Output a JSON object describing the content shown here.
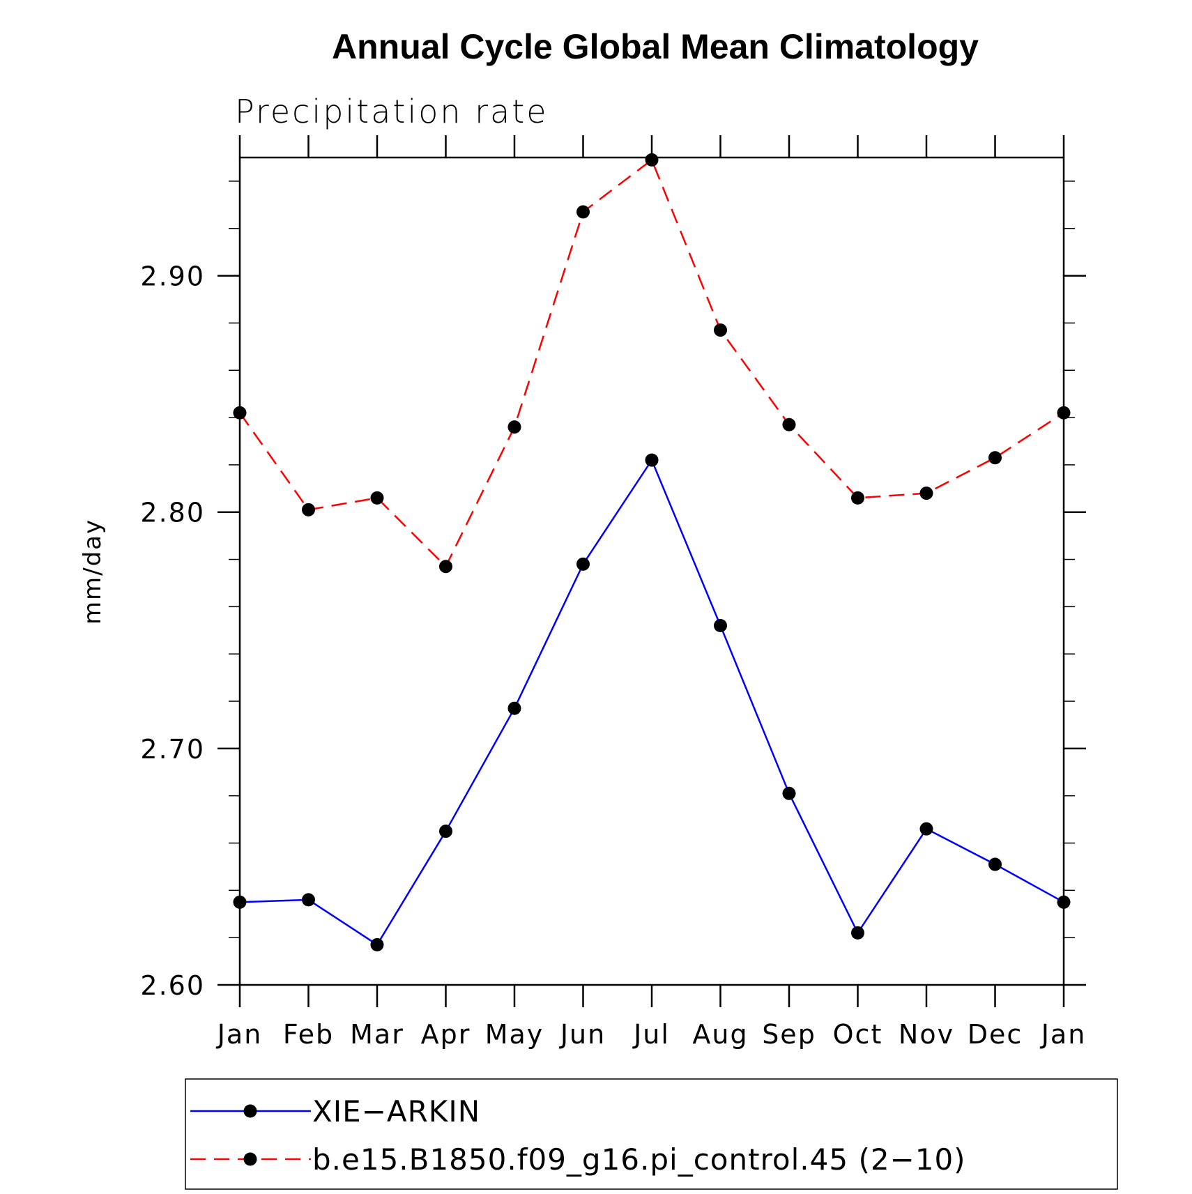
{
  "chart_data": {
    "type": "line",
    "title": "Annual Cycle Global Mean Climatology",
    "subtitle": "Precipitation rate",
    "xlabel": "",
    "ylabel": "mm/day",
    "categories": [
      "Jan",
      "Feb",
      "Mar",
      "Apr",
      "May",
      "Jun",
      "Jul",
      "Aug",
      "Sep",
      "Oct",
      "Nov",
      "Dec",
      "Jan"
    ],
    "ylim": [
      2.6,
      2.95
    ],
    "yticks": [
      2.6,
      2.7,
      2.8,
      2.9
    ],
    "ytick_labels": [
      "2.60",
      "2.70",
      "2.80",
      "2.90"
    ],
    "series": [
      {
        "name": "XIE−ARKIN",
        "color": "#0000ff",
        "dash": "solid",
        "values": [
          2.635,
          2.636,
          2.617,
          2.665,
          2.717,
          2.778,
          2.822,
          2.752,
          2.681,
          2.622,
          2.666,
          2.651,
          2.635
        ]
      },
      {
        "name": "b.e15.B1850.f09_g16.pi_control.45 (2−10)",
        "color": "#ff0000",
        "dash": "dashed",
        "values": [
          2.842,
          2.801,
          2.806,
          2.777,
          2.836,
          2.927,
          2.949,
          2.877,
          2.837,
          2.806,
          2.808,
          2.823,
          2.842
        ]
      }
    ],
    "legend_position": "bottom"
  }
}
